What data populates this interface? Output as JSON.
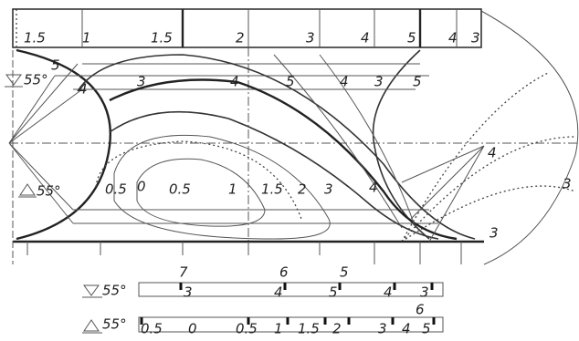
{
  "top_scale": [
    "1.5",
    "1",
    "1.5",
    "2",
    "3",
    "4",
    "5",
    "4",
    "3"
  ],
  "upper_section": {
    "angle": "55°",
    "labels": [
      "5",
      "4",
      "3",
      "4",
      "5",
      "4",
      "3",
      "5"
    ]
  },
  "right_labels": [
    "4",
    "3",
    "3"
  ],
  "lower_section": {
    "angle": "55°",
    "labels": [
      "0.5",
      "0",
      "0.5",
      "1",
      "1.5",
      "2",
      "3",
      "4"
    ]
  },
  "upper_scale": {
    "angle": "55°",
    "labels": [
      "7",
      "3",
      "6",
      "4",
      "5",
      "5",
      "4",
      "3"
    ]
  },
  "lower_scale": {
    "angle": "55°",
    "labels": [
      "0.5",
      "0",
      "0.5",
      "1",
      "1.5",
      "2",
      "3",
      "4",
      "5",
      "6"
    ]
  }
}
